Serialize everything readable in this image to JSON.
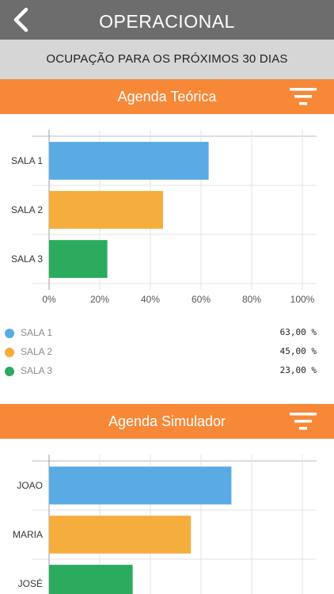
{
  "header": {
    "title": "OPERACIONAL",
    "back_icon": "chevron-left-icon"
  },
  "subheader": {
    "text": "OCUPAÇÃO PARA OS PRÓXIMOS 30 DIAS"
  },
  "colors": {
    "series1": "#5aabe4",
    "series2": "#f5ad3e",
    "series3": "#2aab5e",
    "accent": "#f68838"
  },
  "section1": {
    "title": "Agenda Teórica",
    "filter_icon": "filter-icon",
    "legend": [
      {
        "name": "SALA 1",
        "value": "63,00 %"
      },
      {
        "name": "SALA 2",
        "value": "45,00 %"
      },
      {
        "name": "SALA 3",
        "value": "23,00 %"
      }
    ]
  },
  "section2": {
    "title": "Agenda Simulador",
    "filter_icon": "filter-icon"
  },
  "chart_data": [
    {
      "type": "bar",
      "orientation": "horizontal",
      "categories": [
        "SALA 1",
        "SALA 2",
        "SALA 3"
      ],
      "values": [
        63,
        45,
        23
      ],
      "xlim": [
        0,
        100
      ],
      "ticks": [
        "0%",
        "20%",
        "40%",
        "60%",
        "80%",
        "100%"
      ],
      "grid": true
    },
    {
      "type": "bar",
      "orientation": "horizontal",
      "categories": [
        "JOAO",
        "MARIA",
        "JOSÉ"
      ],
      "values": [
        72,
        56,
        33
      ],
      "xlim": [
        0,
        100
      ],
      "grid": true
    }
  ]
}
